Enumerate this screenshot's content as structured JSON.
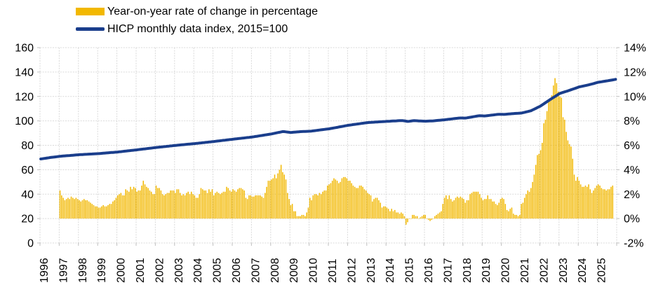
{
  "chart_data": {
    "type": "combo-bar-line",
    "title": "",
    "legend": [
      {
        "label": "Year-on-year rate of change in percentage",
        "marker": "bar",
        "color": "#F2B800"
      },
      {
        "label": "HICP monthly data index, 2015=100",
        "marker": "line",
        "color": "#1A3E8C"
      }
    ],
    "x_axis": {
      "tick_labels": [
        "1996",
        "1997",
        "1998",
        "1999",
        "2000",
        "2001",
        "2002",
        "2003",
        "2004",
        "2005",
        "2006",
        "2007",
        "2008",
        "2009",
        "2010",
        "2011",
        "2012",
        "2013",
        "2014",
        "2015",
        "2016",
        "2017",
        "2018",
        "2019",
        "2020",
        "2021",
        "2022",
        "2023",
        "2024",
        "2025"
      ],
      "start_year": 1996,
      "end_year": 2026
    },
    "left_axis": {
      "ticks": [
        0,
        20,
        40,
        60,
        80,
        100,
        120,
        140,
        160
      ],
      "range": [
        0,
        160
      ]
    },
    "right_axis": {
      "tick_labels": [
        "-2%",
        "0%",
        "2%",
        "4%",
        "6%",
        "8%",
        "10%",
        "12%",
        "14%"
      ],
      "tick_values": [
        -2,
        0,
        2,
        4,
        6,
        8,
        10,
        12,
        14
      ],
      "range": [
        -2,
        14
      ]
    },
    "grid": "on",
    "legend_position": "top-left",
    "bar_series": {
      "name": "Year-on-year rate of change in percentage",
      "unit": "percent",
      "start_month": "1997-01",
      "values_by_year": {
        "1997": [
          2.3,
          1.9,
          1.7,
          1.5,
          1.6,
          1.7,
          1.6,
          1.8,
          1.7,
          1.6,
          1.7,
          1.6
        ],
        "1998": [
          1.5,
          1.4,
          1.5,
          1.6,
          1.5,
          1.5,
          1.4,
          1.3,
          1.2,
          1.1,
          1.0,
          1.0
        ],
        "1999": [
          0.9,
          0.9,
          1.0,
          1.1,
          1.0,
          1.0,
          1.1,
          1.2,
          1.2,
          1.4,
          1.5,
          1.7
        ],
        "2000": [
          1.9,
          2.0,
          2.1,
          1.9,
          1.9,
          2.4,
          2.3,
          2.2,
          2.6,
          2.4,
          2.6,
          2.5
        ],
        "2001": [
          2.2,
          2.3,
          2.3,
          2.7,
          3.1,
          2.8,
          2.6,
          2.5,
          2.3,
          2.2,
          2.0,
          2.0
        ],
        "2002": [
          2.7,
          2.5,
          2.5,
          2.3,
          2.0,
          1.9,
          2.0,
          2.1,
          2.1,
          2.3,
          2.3,
          2.3
        ],
        "2003": [
          2.1,
          2.4,
          2.4,
          2.1,
          1.9,
          2.0,
          1.9,
          2.1,
          2.2,
          2.0,
          2.2,
          2.0
        ],
        "2004": [
          1.9,
          1.7,
          1.7,
          2.0,
          2.5,
          2.4,
          2.3,
          2.3,
          2.1,
          2.4,
          2.2,
          2.4
        ],
        "2005": [
          1.9,
          2.1,
          2.2,
          2.1,
          2.0,
          2.1,
          2.2,
          2.2,
          2.6,
          2.5,
          2.3,
          2.2
        ],
        "2006": [
          2.4,
          2.3,
          2.2,
          2.4,
          2.5,
          2.5,
          2.4,
          2.3,
          1.7,
          1.6,
          1.9,
          1.9
        ],
        "2007": [
          1.8,
          1.8,
          1.9,
          1.9,
          1.9,
          1.9,
          1.8,
          1.7,
          2.1,
          2.6,
          3.1,
          3.1
        ],
        "2008": [
          3.2,
          3.3,
          3.6,
          3.3,
          3.7,
          4.0,
          4.4,
          3.8,
          3.6,
          3.2,
          2.1,
          1.6
        ],
        "2009": [
          1.1,
          1.2,
          0.6,
          0.6,
          0.2,
          0.2,
          0.2,
          0.3,
          0.3,
          0.2,
          0.5,
          0.9
        ],
        "2010": [
          1.7,
          1.5,
          1.9,
          2.0,
          2.0,
          1.9,
          2.1,
          2.0,
          2.2,
          2.3,
          2.3,
          2.7
        ],
        "2011": [
          2.8,
          2.9,
          3.1,
          3.3,
          3.2,
          3.1,
          2.9,
          3.0,
          3.3,
          3.4,
          3.4,
          3.3
        ],
        "2012": [
          3.1,
          3.1,
          2.9,
          2.7,
          2.6,
          2.5,
          2.5,
          2.7,
          2.7,
          2.6,
          2.4,
          2.3
        ],
        "2013": [
          2.1,
          2.0,
          1.9,
          1.4,
          1.6,
          1.7,
          1.7,
          1.5,
          1.3,
          0.9,
          1.0,
          1.0
        ],
        "2014": [
          0.9,
          0.8,
          0.6,
          0.8,
          0.6,
          0.7,
          0.5,
          0.5,
          0.4,
          0.5,
          0.4,
          0.2
        ],
        "2015": [
          -0.5,
          -0.3,
          0.0,
          0.0,
          0.3,
          0.3,
          0.2,
          0.2,
          0.0,
          0.1,
          0.2,
          0.3
        ],
        "2016": [
          0.3,
          0.0,
          -0.1,
          -0.2,
          -0.1,
          0.0,
          0.2,
          0.3,
          0.4,
          0.5,
          0.6,
          1.2
        ],
        "2017": [
          1.7,
          1.9,
          1.6,
          1.9,
          1.6,
          1.4,
          1.5,
          1.7,
          1.8,
          1.7,
          1.8,
          1.7
        ],
        "2018": [
          1.6,
          1.3,
          1.5,
          1.5,
          2.0,
          2.1,
          2.2,
          2.2,
          2.2,
          2.2,
          2.0,
          1.7
        ],
        "2019": [
          1.5,
          1.6,
          1.6,
          1.9,
          1.6,
          1.6,
          1.4,
          1.4,
          1.2,
          1.1,
          1.3,
          1.6
        ],
        "2020": [
          1.7,
          1.6,
          1.2,
          0.7,
          0.6,
          0.8,
          0.9,
          0.4,
          0.3,
          0.3,
          0.2,
          0.3
        ],
        "2021": [
          1.2,
          1.3,
          1.7,
          2.0,
          2.3,
          2.2,
          2.5,
          3.0,
          3.6,
          4.4,
          5.2,
          5.3
        ],
        "2022": [
          5.6,
          6.2,
          7.8,
          8.1,
          8.8,
          9.6,
          9.8,
          10.1,
          10.9,
          11.5,
          11.1,
          10.4
        ],
        "2023": [
          10.0,
          9.9,
          8.3,
          8.1,
          7.1,
          6.4,
          6.1,
          5.9,
          4.9,
          3.6,
          3.1,
          3.4
        ],
        "2024": [
          3.1,
          2.8,
          2.6,
          2.6,
          2.7,
          2.6,
          2.8,
          2.4,
          2.1,
          2.3,
          2.5,
          2.7
        ],
        "2025": [
          2.8,
          2.7,
          2.5,
          2.4,
          2.4,
          2.3,
          2.4,
          2.4,
          2.6,
          2.7
        ]
      }
    },
    "line_series": {
      "name": "HICP monthly data index, 2015=100",
      "unit": "index, 2015=100",
      "anchor_points": [
        [
          1996.0,
          68.8
        ],
        [
          1996.5,
          70.0
        ],
        [
          1997.0,
          71.0
        ],
        [
          1998.0,
          72.3
        ],
        [
          1999.0,
          73.2
        ],
        [
          2000.0,
          74.5
        ],
        [
          2001.0,
          76.3
        ],
        [
          2002.0,
          78.2
        ],
        [
          2003.0,
          79.9
        ],
        [
          2004.0,
          81.4
        ],
        [
          2005.0,
          83.1
        ],
        [
          2006.0,
          85.0
        ],
        [
          2007.0,
          86.8
        ],
        [
          2008.0,
          89.3
        ],
        [
          2008.6,
          91.3
        ],
        [
          2009.0,
          90.5
        ],
        [
          2009.5,
          91.2
        ],
        [
          2010.0,
          91.5
        ],
        [
          2011.0,
          93.5
        ],
        [
          2012.0,
          96.4
        ],
        [
          2013.0,
          98.6
        ],
        [
          2014.0,
          99.6
        ],
        [
          2014.8,
          100.3
        ],
        [
          2015.1,
          99.5
        ],
        [
          2015.4,
          100.2
        ],
        [
          2016.0,
          99.7
        ],
        [
          2016.4,
          100.0
        ],
        [
          2017.0,
          100.9
        ],
        [
          2017.8,
          102.4
        ],
        [
          2018.1,
          102.3
        ],
        [
          2018.8,
          104.2
        ],
        [
          2019.1,
          104.0
        ],
        [
          2019.8,
          105.4
        ],
        [
          2020.1,
          105.3
        ],
        [
          2020.6,
          106.0
        ],
        [
          2021.0,
          106.4
        ],
        [
          2021.5,
          108.3
        ],
        [
          2022.0,
          112.2
        ],
        [
          2022.5,
          117.5
        ],
        [
          2023.0,
          122.5
        ],
        [
          2023.5,
          125.0
        ],
        [
          2024.0,
          127.8
        ],
        [
          2024.5,
          129.5
        ],
        [
          2025.0,
          131.6
        ],
        [
          2025.5,
          132.9
        ],
        [
          2025.9,
          134.0
        ]
      ]
    },
    "colors": {
      "bar": "#F2B800",
      "line": "#1A3E8C",
      "grid": "#D9D9D9",
      "text": "#000000",
      "background": "#FFFFFF"
    }
  }
}
